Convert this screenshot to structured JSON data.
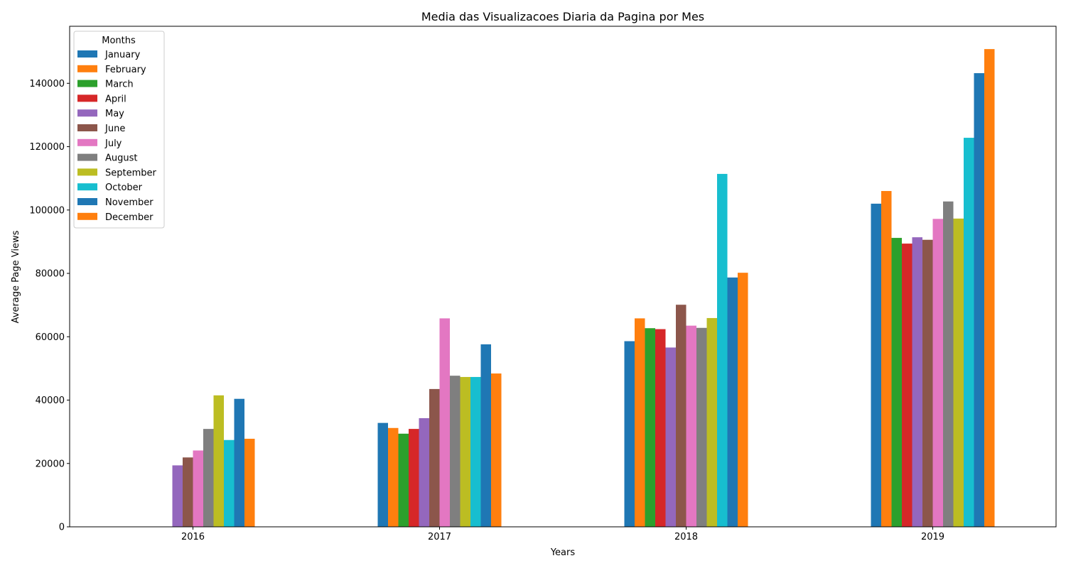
{
  "chart_data": {
    "type": "bar",
    "title": "Media das Visualizacoes Diaria da Pagina por Mes",
    "xlabel": "Years",
    "ylabel": "Average Page Views",
    "categories": [
      "2016",
      "2017",
      "2018",
      "2019"
    ],
    "ylim": [
      0,
      158000
    ],
    "yticks": [
      0,
      20000,
      40000,
      60000,
      80000,
      100000,
      120000,
      140000
    ],
    "ytick_labels": [
      "0",
      "20000",
      "40000",
      "60000",
      "80000",
      "100000",
      "120000",
      "140000"
    ],
    "grid": false,
    "legend": {
      "title": "Months",
      "placement": "top-left"
    },
    "series": [
      {
        "name": "January",
        "color": "#1f77b4",
        "values": [
          null,
          32800,
          58600,
          102000
        ]
      },
      {
        "name": "February",
        "color": "#ff7f0e",
        "values": [
          null,
          31200,
          65800,
          106000
        ]
      },
      {
        "name": "March",
        "color": "#2ca02c",
        "values": [
          null,
          29400,
          62700,
          91200
        ]
      },
      {
        "name": "April",
        "color": "#d62728",
        "values": [
          null,
          30900,
          62400,
          89400
        ]
      },
      {
        "name": "May",
        "color": "#9467bd",
        "values": [
          19400,
          34300,
          56600,
          91400
        ]
      },
      {
        "name": "June",
        "color": "#8c564b",
        "values": [
          21900,
          43500,
          70100,
          90600
        ]
      },
      {
        "name": "July",
        "color": "#e377c2",
        "values": [
          24100,
          65800,
          63500,
          97200
        ]
      },
      {
        "name": "August",
        "color": "#7f7f7f",
        "values": [
          30900,
          47700,
          62800,
          102700
        ]
      },
      {
        "name": "September",
        "color": "#bcbd22",
        "values": [
          41500,
          47300,
          65900,
          97300
        ]
      },
      {
        "name": "October",
        "color": "#17becf",
        "values": [
          27400,
          47300,
          111400,
          122800
        ]
      },
      {
        "name": "November",
        "color": "#1f77b4",
        "values": [
          40400,
          57600,
          78700,
          143200
        ]
      },
      {
        "name": "December",
        "color": "#ff7f0e",
        "values": [
          27800,
          48400,
          80200,
          150800
        ]
      }
    ]
  }
}
